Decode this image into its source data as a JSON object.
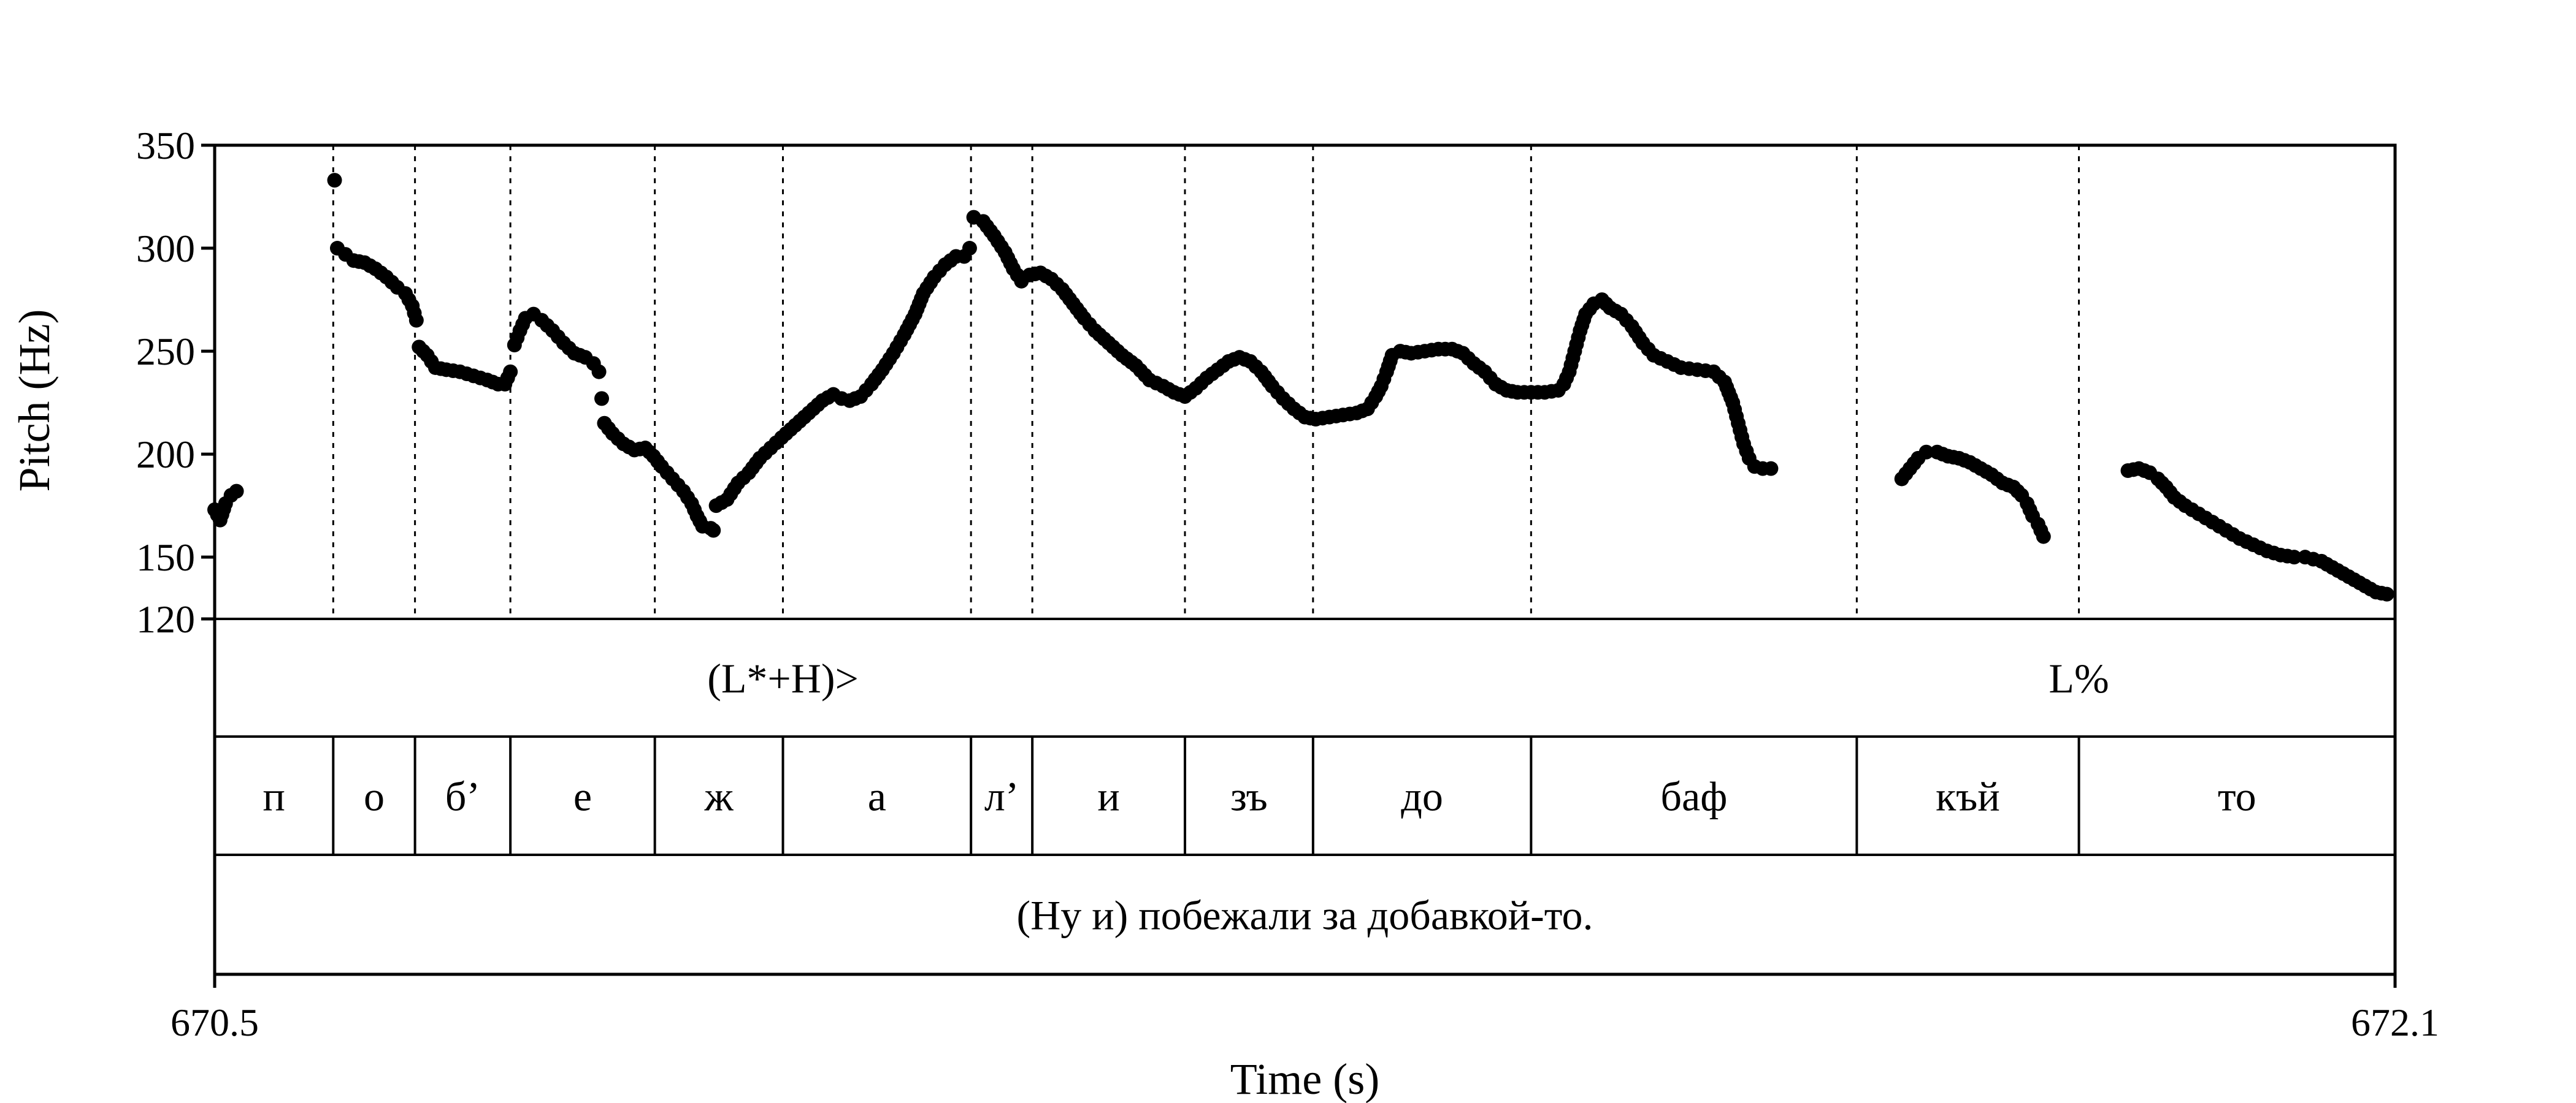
{
  "chart_data": {
    "type": "scatter",
    "xlabel": "Time (s)",
    "ylabel": "Pitch (Hz)",
    "xlim": [
      670.5,
      672.1
    ],
    "ylim": [
      120,
      350
    ],
    "x_ticks": [
      "670.5",
      "672.1"
    ],
    "y_ticks": [
      {
        "value": 350,
        "label": "350"
      },
      {
        "value": 300,
        "label": "300"
      },
      {
        "value": 250,
        "label": "250"
      },
      {
        "value": 200,
        "label": "200"
      },
      {
        "value": 150,
        "label": "150"
      },
      {
        "value": 120,
        "label": "120"
      }
    ],
    "grid": false,
    "boundaries": [
      670.587,
      670.647,
      670.717,
      670.823,
      670.917,
      671.055,
      671.1,
      671.212,
      671.306,
      671.466,
      671.705,
      671.868
    ],
    "tones": [
      {
        "t": 670.917,
        "label": "(L*+H)>"
      },
      {
        "t": 671.868,
        "label": "L%"
      }
    ],
    "segments": [
      {
        "start": 670.5,
        "end": 670.587,
        "label": "п"
      },
      {
        "start": 670.587,
        "end": 670.647,
        "label": "о"
      },
      {
        "start": 670.647,
        "end": 670.717,
        "label": "б’"
      },
      {
        "start": 670.717,
        "end": 670.823,
        "label": "е"
      },
      {
        "start": 670.823,
        "end": 670.917,
        "label": "ж"
      },
      {
        "start": 670.917,
        "end": 671.055,
        "label": "а"
      },
      {
        "start": 671.055,
        "end": 671.1,
        "label": "л’"
      },
      {
        "start": 671.1,
        "end": 671.212,
        "label": "и"
      },
      {
        "start": 671.212,
        "end": 671.306,
        "label": "зъ"
      },
      {
        "start": 671.306,
        "end": 671.466,
        "label": "до"
      },
      {
        "start": 671.466,
        "end": 671.705,
        "label": "баф"
      },
      {
        "start": 671.705,
        "end": 671.868,
        "label": "къй"
      },
      {
        "start": 671.868,
        "end": 672.1,
        "label": "то"
      }
    ],
    "sentence": "(Ну и) побежали за добавкой-то.",
    "pitch_contour": [
      [
        [
          670.5,
          173
        ],
        [
          670.504,
          168
        ],
        [
          670.508,
          176
        ],
        [
          670.512,
          180
        ],
        [
          670.516,
          182
        ]
      ],
      [
        [
          670.588,
          333
        ]
      ],
      [
        [
          670.59,
          300
        ],
        [
          670.596,
          297
        ],
        [
          670.602,
          294
        ],
        [
          670.61,
          293
        ],
        [
          670.618,
          290
        ],
        [
          670.626,
          286
        ],
        [
          670.634,
          281
        ],
        [
          670.64,
          278
        ],
        [
          670.645,
          272
        ],
        [
          670.648,
          265
        ]
      ],
      [
        [
          670.65,
          252
        ],
        [
          670.656,
          248
        ],
        [
          670.662,
          242
        ],
        [
          670.67,
          241
        ],
        [
          670.68,
          240
        ],
        [
          670.69,
          238
        ],
        [
          670.7,
          236
        ],
        [
          670.708,
          234
        ],
        [
          670.713,
          234
        ],
        [
          670.717,
          240
        ]
      ],
      [
        [
          670.72,
          253
        ],
        [
          670.724,
          260
        ],
        [
          670.728,
          266
        ],
        [
          670.734,
          268
        ],
        [
          670.74,
          265
        ],
        [
          670.748,
          260
        ],
        [
          670.756,
          254
        ],
        [
          670.764,
          249
        ],
        [
          670.772,
          247
        ],
        [
          670.778,
          244
        ],
        [
          670.782,
          240
        ]
      ],
      [
        [
          670.784,
          227
        ]
      ],
      [
        [
          670.786,
          215
        ],
        [
          670.792,
          210
        ],
        [
          670.8,
          205
        ],
        [
          670.808,
          202
        ],
        [
          670.816,
          203
        ],
        [
          670.822,
          199
        ],
        [
          670.828,
          194
        ],
        [
          670.836,
          188
        ],
        [
          670.844,
          182
        ],
        [
          670.85,
          176
        ],
        [
          670.854,
          170
        ],
        [
          670.858,
          165
        ],
        [
          670.864,
          164
        ],
        [
          670.866,
          163
        ]
      ],
      [
        [
          670.868,
          175
        ],
        [
          670.876,
          178
        ],
        [
          670.884,
          186
        ],
        [
          670.892,
          191
        ],
        [
          670.9,
          198
        ],
        [
          670.908,
          203
        ],
        [
          670.916,
          208
        ],
        [
          670.926,
          214
        ],
        [
          670.936,
          220
        ],
        [
          670.946,
          226
        ],
        [
          670.954,
          229
        ],
        [
          670.96,
          227
        ],
        [
          670.966,
          226
        ],
        [
          670.974,
          228
        ],
        [
          670.982,
          234
        ],
        [
          670.99,
          241
        ],
        [
          670.998,
          249
        ],
        [
          671.006,
          258
        ],
        [
          671.014,
          268
        ],
        [
          671.02,
          278
        ],
        [
          671.028,
          286
        ],
        [
          671.036,
          292
        ],
        [
          671.044,
          296
        ],
        [
          671.05,
          296
        ],
        [
          671.054,
          300
        ]
      ],
      [
        [
          671.057,
          315
        ],
        [
          671.064,
          313
        ],
        [
          671.072,
          306
        ],
        [
          671.08,
          298
        ],
        [
          671.086,
          290
        ],
        [
          671.092,
          284
        ],
        [
          671.098,
          287
        ],
        [
          671.106,
          288
        ],
        [
          671.114,
          285
        ],
        [
          671.122,
          280
        ],
        [
          671.13,
          273
        ],
        [
          671.138,
          266
        ],
        [
          671.146,
          260
        ],
        [
          671.156,
          254
        ],
        [
          671.166,
          248
        ],
        [
          671.176,
          243
        ],
        [
          671.186,
          236
        ],
        [
          671.196,
          233
        ],
        [
          671.204,
          230
        ],
        [
          671.212,
          228
        ],
        [
          671.22,
          232
        ],
        [
          671.228,
          237
        ],
        [
          671.236,
          241
        ],
        [
          671.244,
          245
        ],
        [
          671.252,
          247
        ],
        [
          671.26,
          245
        ],
        [
          671.268,
          240
        ],
        [
          671.276,
          233
        ],
        [
          671.284,
          227
        ],
        [
          671.292,
          222
        ],
        [
          671.3,
          218
        ],
        [
          671.308,
          217
        ],
        [
          671.318,
          218
        ],
        [
          671.328,
          219
        ],
        [
          671.338,
          220
        ],
        [
          671.346,
          222
        ],
        [
          671.352,
          228
        ],
        [
          671.356,
          233
        ],
        [
          671.36,
          240
        ],
        [
          671.364,
          248
        ],
        [
          671.37,
          250
        ],
        [
          671.378,
          249
        ],
        [
          671.388,
          250
        ],
        [
          671.398,
          251
        ],
        [
          671.408,
          251
        ],
        [
          671.416,
          249
        ],
        [
          671.424,
          244
        ],
        [
          671.432,
          240
        ],
        [
          671.44,
          234
        ],
        [
          671.448,
          231
        ],
        [
          671.456,
          230
        ],
        [
          671.466,
          230
        ],
        [
          671.476,
          230
        ],
        [
          671.486,
          231
        ],
        [
          671.49,
          234
        ],
        [
          671.494,
          240
        ],
        [
          671.498,
          250
        ],
        [
          671.502,
          260
        ],
        [
          671.506,
          268
        ],
        [
          671.512,
          273
        ],
        [
          671.518,
          275
        ],
        [
          671.524,
          271
        ],
        [
          671.532,
          268
        ],
        [
          671.54,
          262
        ],
        [
          671.548,
          254
        ],
        [
          671.556,
          248
        ],
        [
          671.566,
          245
        ],
        [
          671.576,
          242
        ],
        [
          671.588,
          241
        ],
        [
          671.6,
          240
        ],
        [
          671.608,
          235
        ],
        [
          671.614,
          225
        ],
        [
          671.618,
          215
        ],
        [
          671.622,
          205
        ],
        [
          671.626,
          198
        ],
        [
          671.63,
          194
        ],
        [
          671.636,
          193
        ],
        [
          671.642,
          193
        ]
      ],
      [
        [
          671.738,
          188
        ],
        [
          671.744,
          193
        ],
        [
          671.75,
          198
        ],
        [
          671.756,
          201
        ],
        [
          671.764,
          201
        ],
        [
          671.772,
          199
        ],
        [
          671.78,
          198
        ],
        [
          671.788,
          196
        ],
        [
          671.796,
          193
        ],
        [
          671.804,
          190
        ],
        [
          671.812,
          186
        ],
        [
          671.82,
          184
        ],
        [
          671.826,
          180
        ],
        [
          671.83,
          176
        ],
        [
          671.834,
          170
        ],
        [
          671.838,
          166
        ],
        [
          671.842,
          160
        ]
      ],
      [
        [
          671.904,
          192
        ],
        [
          671.912,
          193
        ],
        [
          671.92,
          191
        ],
        [
          671.926,
          188
        ],
        [
          671.932,
          184
        ],
        [
          671.938,
          179
        ],
        [
          671.946,
          175
        ],
        [
          671.956,
          171
        ],
        [
          671.966,
          167
        ],
        [
          671.976,
          163
        ],
        [
          671.986,
          159
        ],
        [
          671.996,
          156
        ],
        [
          672.006,
          153
        ],
        [
          672.016,
          151
        ],
        [
          672.026,
          150
        ],
        [
          672.034,
          150
        ],
        [
          672.04,
          149
        ],
        [
          672.046,
          148
        ],
        [
          672.054,
          145
        ],
        [
          672.062,
          142
        ],
        [
          672.07,
          139
        ],
        [
          672.078,
          136
        ],
        [
          672.086,
          133
        ],
        [
          672.094,
          132
        ]
      ]
    ]
  }
}
